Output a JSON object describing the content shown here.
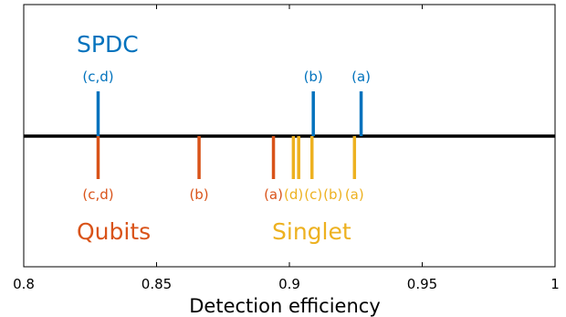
{
  "chart_data": {
    "type": "scatter",
    "xlabel": "Detection efficiency",
    "xlim": [
      0.8,
      1.0
    ],
    "xticks": [
      "0.8",
      "0.85",
      "0.9",
      "0.95",
      "1"
    ],
    "grid": false,
    "groups": [
      {
        "name": "SPDC",
        "side": "above",
        "color": "#0072BD",
        "points": [
          {
            "x": 0.828,
            "label": "(c,d)"
          },
          {
            "x": 0.909,
            "label": "(b)"
          },
          {
            "x": 0.927,
            "label": "(a)"
          }
        ]
      },
      {
        "name": "Qubits",
        "side": "below",
        "color": "#D95319",
        "points": [
          {
            "x": 0.828,
            "label": "(c,d)"
          },
          {
            "x": 0.866,
            "label": "(b)"
          },
          {
            "x": 0.894,
            "label": "(a)"
          }
        ]
      },
      {
        "name": "Singlet",
        "side": "below",
        "color": "#EDB120",
        "points": [
          {
            "x": 0.9015,
            "label": "(d)"
          },
          {
            "x": 0.9035,
            "label": "(c)"
          },
          {
            "x": 0.9085,
            "label": "(b)"
          },
          {
            "x": 0.9245,
            "label": "(a)"
          }
        ]
      }
    ]
  }
}
